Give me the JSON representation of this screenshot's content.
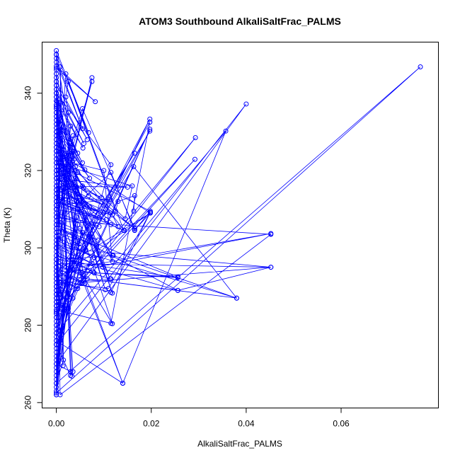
{
  "chart_data": {
    "type": "line",
    "title": "ATOM3 Southbound AlkaliSaltFrac_PALMS",
    "xlabel": "AlkaliSaltFrac_PALMS",
    "ylabel": "Theta (K)",
    "xlim": [
      -0.003,
      0.0805
    ],
    "ylim": [
      258.6,
      353.2
    ],
    "xticks": [
      0.0,
      0.02,
      0.04,
      0.06
    ],
    "xtick_labels": [
      "0.00",
      "0.02",
      "0.04",
      "0.06"
    ],
    "yticks": [
      260,
      280,
      300,
      320,
      340
    ],
    "ytick_labels": [
      "260",
      "280",
      "300",
      "320",
      "340"
    ],
    "grid": false,
    "series_color": "#0000ff",
    "marker": "open-circle",
    "series": [
      {
        "x": [
          0.0,
          0.0,
          0.0,
          0.0015,
          0.003,
          0.0,
          0.0,
          0.003,
          0.0,
          0.014,
          0.0,
          0.0,
          0.0,
          0.0,
          0.0,
          0.0,
          0.0,
          0.0,
          0.0,
          0.0,
          0.0,
          0.0115,
          0.0,
          0.0,
          0.0,
          0.0025,
          0.0025,
          0.0,
          0.0,
          0.0,
          0.0,
          0.0,
          0.0,
          0.038,
          0.0,
          0.0,
          0.0,
          0.011,
          0.0115,
          0.0,
          0.0,
          0.0256,
          0.0256,
          0.0,
          0.0,
          0.005,
          0.0,
          0.0115,
          0.0,
          0.008,
          0.0,
          0.0,
          0.0452,
          0.0,
          0.0,
          0.012,
          0.0,
          0.0,
          0.0,
          0.005,
          0.0,
          0.006,
          0.0,
          0.0,
          0.0,
          0.0,
          0.0452,
          0.0,
          0.0,
          0.0,
          0.0,
          0.0142,
          0.0,
          0.0,
          0.0165,
          0.0165,
          0.0,
          0.0,
          0.0,
          0.0,
          0.0,
          0.01,
          0.0,
          0.0,
          0.0,
          0.0,
          0.0118,
          0.0,
          0.002,
          0.0,
          0.0,
          0.0198,
          0.0198,
          0.0,
          0.016,
          0.0,
          0.0,
          0.0,
          0.01,
          0.0,
          0.0,
          0.0,
          0.0,
          0.0,
          0.0,
          0.0,
          0.0,
          0.0,
          0.0,
          0.0,
          0.0,
          0.0,
          0.0,
          0.0,
          0.0,
          0.0,
          0.0115,
          0.0,
          0.0,
          0.0,
          0.0,
          0.0,
          0.0,
          0.0,
          0.0,
          0.0,
          0.0,
          0.0,
          0.0,
          0.0,
          0.0,
          0.0,
          0.0,
          0.0,
          0.0,
          0.0,
          0.0,
          0.0,
          0.0,
          0.0,
          0.0,
          0.0,
          0.0,
          0.0,
          0.0,
          0.0,
          0.0,
          0.0,
          0.0,
          0.0,
          0.0,
          0.0,
          0.0,
          0.0,
          0.0,
          0.0,
          0.0,
          0.0,
          0.0,
          0.0,
          0.0,
          0.0,
          0.0,
          0.0,
          0.0,
          0.0,
          0.0,
          0.0,
          0.0,
          0.0,
          0.0,
          0.0,
          0.0,
          0.0,
          0.0,
          0.0,
          0.0,
          0.0,
          0.0,
          0.0,
          0.0,
          0.0,
          0.0,
          0.0,
          0.0,
          0.0,
          0.0,
          0.0,
          0.0,
          0.0,
          0.0,
          0.0,
          0.0,
          0.0,
          0.0,
          0.0,
          0.0,
          0.0,
          0.0,
          0.0,
          0.0,
          0.0,
          0.0,
          0.0,
          0.0,
          0.0,
          0.0,
          0.0,
          0.0,
          0.0,
          0.0,
          0.0,
          0.0,
          0.0,
          0.0,
          0.0,
          0.0,
          0.0,
          0.0,
          0.0,
          0.0,
          0.0,
          0.0,
          0.0,
          0.0,
          0.0,
          0.0,
          0.0,
          0.0,
          0.0
        ],
        "y": [
          262,
          262.5,
          265,
          271,
          268,
          270,
          275,
          267,
          276,
          265,
          278,
          280,
          282,
          283,
          285,
          283.5,
          285,
          286,
          287,
          288,
          284,
          280.5,
          287,
          290,
          291,
          284.5,
          283.5,
          286,
          289,
          288,
          290,
          292,
          293,
          287,
          288,
          289,
          291,
          289.5,
          288.5,
          292,
          294,
          292.5,
          289,
          293,
          294,
          291,
          296,
          292,
          295,
          293.5,
          297,
          298,
          295,
          300,
          297,
          298,
          301,
          303,
          302,
          305,
          304,
          300,
          306,
          309,
          311,
          310,
          303.5,
          307,
          305,
          308,
          312,
          304.5,
          310,
          314,
          305,
          304.5,
          306,
          318,
          316,
          311,
          313,
          309,
          315,
          308,
          316,
          318,
          308.5,
          312,
          324,
          320,
          322,
          309.5,
          309,
          325,
          316,
          322,
          319,
          326,
          320,
          323,
          327,
          324,
          330,
          328,
          331,
          329,
          332,
          330,
          333,
          334,
          335,
          336,
          334,
          336.5,
          337,
          338,
          321.5,
          340,
          339,
          341,
          342,
          343,
          344,
          345,
          346,
          346.5,
          347,
          348,
          349,
          350,
          351,
          343,
          342,
          341,
          340,
          339,
          338,
          337,
          336,
          335,
          334,
          333,
          332,
          331,
          330,
          329,
          328,
          327,
          326,
          325,
          324,
          323,
          322,
          321,
          320,
          319,
          318,
          317,
          316,
          315,
          314,
          313,
          312,
          311,
          310,
          309,
          308,
          307,
          306,
          305,
          304,
          303,
          302,
          301,
          300,
          299,
          298,
          297,
          296,
          295,
          294,
          293,
          292,
          291,
          290,
          289,
          288,
          287,
          286,
          285,
          284,
          283,
          282,
          281,
          280,
          279,
          278,
          277,
          276,
          275,
          274,
          273,
          272,
          271,
          270,
          269,
          268,
          267,
          266,
          265,
          264,
          263,
          262,
          300,
          310,
          320,
          330,
          340,
          350,
          345,
          335,
          325,
          315,
          305,
          295,
          285,
          275,
          290,
          300,
          310
        ],
        "extra_points": [
          [
            0.0767,
            346.8
          ],
          [
            0.0008,
            346.8
          ],
          [
            0.04,
            337.2
          ],
          [
            0.0008,
            337.5
          ],
          [
            0.0357,
            330.2
          ],
          [
            0.0008,
            330.5
          ],
          [
            0.0293,
            328.5
          ],
          [
            0.0292,
            322.9
          ],
          [
            0.0008,
            316
          ],
          [
            0.0197,
            333.3
          ],
          [
            0.0197,
            332.5
          ],
          [
            0.0002,
            337.8
          ],
          [
            0.0197,
            330.7
          ],
          [
            0.0197,
            330.2
          ],
          [
            0.0008,
            322
          ],
          [
            0.0165,
            324.5
          ],
          [
            0.0163,
            321
          ],
          [
            0.0008,
            315
          ],
          [
            0.0198,
            309.2
          ],
          [
            0.0198,
            309
          ],
          [
            0.0008,
            305
          ],
          [
            0.0452,
            303.7
          ],
          [
            0.0452,
            295
          ],
          [
            0.0008,
            291
          ],
          [
            0.0256,
            292.3
          ],
          [
            0.0256,
            289
          ],
          [
            0.0008,
            288
          ],
          [
            0.038,
            287
          ],
          [
            0.0008,
            283.5
          ],
          [
            0.0118,
            280.4
          ],
          [
            0.0008,
            276
          ],
          [
            0.014,
            265
          ],
          [
            0.0008,
            262
          ],
          [
            0.0075,
            344
          ],
          [
            0.0075,
            343
          ],
          [
            0.002,
            345
          ],
          [
            0.0055,
            336
          ],
          [
            0.0115,
            319.5
          ],
          [
            0.015,
            315.7
          ],
          [
            0.0112,
            312.5
          ],
          [
            0.0114,
            309
          ],
          [
            0.0115,
            306
          ],
          [
            0.013,
            305.5
          ],
          [
            0.0143,
            304.5
          ],
          [
            0.0165,
            305
          ],
          [
            0.0165,
            304.6
          ],
          [
            0.0145,
            307.5
          ],
          [
            0.0118,
            298
          ],
          [
            0.0118,
            296.5
          ],
          [
            0.0098,
            295
          ],
          [
            0.0113,
            292
          ],
          [
            0.0103,
            289.2
          ],
          [
            0.0118,
            288.3
          ],
          [
            0.0057,
            293
          ],
          [
            0.0054,
            291
          ],
          [
            0.0035,
            300.5
          ],
          [
            0.0048,
            301
          ],
          [
            0.0062,
            299.5
          ],
          [
            0.0072,
            301.8
          ],
          [
            0.0035,
            268
          ],
          [
            0.0033,
            266.8
          ],
          [
            0.0014,
            269.5
          ],
          [
            0.0082,
            337.8
          ],
          [
            0.0055,
            330.8
          ],
          [
            0.0068,
            329.8
          ],
          [
            0.0065,
            328
          ],
          [
            0.0058,
            327
          ],
          [
            0.0056,
            325.8
          ],
          [
            0.0045,
            324.5
          ],
          [
            0.0055,
            322
          ],
          [
            0.006,
            320.2
          ],
          [
            0.007,
            318
          ],
          [
            0.0057,
            315.5
          ],
          [
            0.0068,
            313.5
          ],
          [
            0.006,
            311.5
          ],
          [
            0.007,
            310.5
          ],
          [
            0.0075,
            309.5
          ],
          [
            0.0095,
            313
          ],
          [
            0.01,
            311
          ],
          [
            0.0093,
            309.2
          ],
          [
            0.009,
            307.8
          ],
          [
            0.0105,
            307.3
          ],
          [
            0.009,
            305.5
          ],
          [
            0.0088,
            302
          ],
          [
            0.0085,
            300.5
          ],
          [
            0.008,
            297.5
          ],
          [
            0.0075,
            296
          ],
          [
            0.0078,
            293.8
          ],
          [
            0.0065,
            292
          ],
          [
            0.006,
            290.8
          ],
          [
            0.0045,
            289.5
          ],
          [
            0.0035,
            287
          ],
          [
            0.0025,
            286.5
          ],
          [
            0.0025,
            284.2
          ],
          [
            0.0035,
            294.5
          ],
          [
            0.0035,
            297
          ],
          [
            0.0045,
            306
          ],
          [
            0.0055,
            304
          ],
          [
            0.006,
            307.8
          ],
          [
            0.0065,
            305.5
          ],
          [
            0.0068,
            303
          ],
          [
            0.0042,
            308
          ],
          [
            0.0045,
            310
          ],
          [
            0.0042,
            312
          ],
          [
            0.0045,
            314
          ],
          [
            0.0055,
            316
          ],
          [
            0.004,
            318
          ],
          [
            0.0045,
            319.5
          ],
          [
            0.004,
            321
          ],
          [
            0.0038,
            323
          ],
          [
            0.0035,
            325
          ],
          [
            0.003,
            327
          ],
          [
            0.0035,
            329
          ],
          [
            0.003,
            331.5
          ],
          [
            0.0025,
            335
          ],
          [
            0.002,
            339
          ],
          [
            0.0025,
            343
          ],
          [
            0.0125,
            309.5
          ],
          [
            0.013,
            312
          ],
          [
            0.0165,
            313.5
          ],
          [
            0.0163,
            309.5
          ]
        ]
      }
    ]
  }
}
